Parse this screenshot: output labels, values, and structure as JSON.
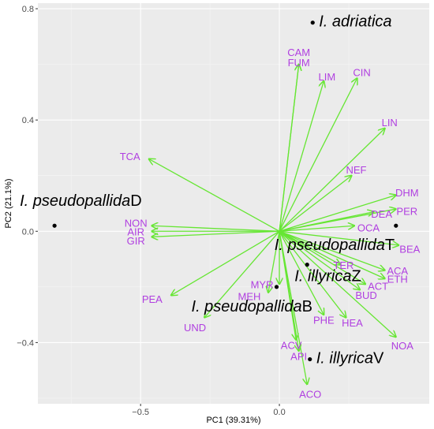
{
  "chart_data": {
    "type": "scatter",
    "subtype": "PCA biplot",
    "title": "",
    "xlabel": "PC1 (39.31%)",
    "ylabel": "PC2 (21.1%)",
    "xlim": [
      -0.87,
      0.54
    ],
    "ylim": [
      -0.62,
      0.82
    ],
    "x_ticks": [
      {
        "value": -0.5,
        "label": "−0.5"
      },
      {
        "value": 0.0,
        "label": "0.0"
      }
    ],
    "y_ticks": [
      {
        "value": 0.8,
        "label": "0.8"
      },
      {
        "value": 0.4,
        "label": "0.4"
      },
      {
        "value": 0.0,
        "label": "0.0"
      },
      {
        "value": -0.4,
        "label": "−0.4"
      }
    ],
    "grid": true,
    "colors": {
      "panel": "#ebebeb",
      "grid_major": "#ffffff",
      "arrow": "#66e633",
      "variable_label": "#b03fe0",
      "point": "#000000"
    },
    "groups": [
      {
        "name": "I. adriatica",
        "suffix": "",
        "x": 0.12,
        "y": 0.75
      },
      {
        "name": "I. pseudopallida",
        "suffix": "D",
        "x": -0.81,
        "y": 0.02
      },
      {
        "name": "I. pseudopallida",
        "suffix": "T",
        "x": 0.42,
        "y": 0.02
      },
      {
        "name": "I. illyrica",
        "suffix": "Z",
        "x": 0.1,
        "y": -0.12
      },
      {
        "name": "I. pseudopallida",
        "suffix": "B",
        "x": -0.01,
        "y": -0.2
      },
      {
        "name": "I. illyrica",
        "suffix": "V",
        "x": 0.11,
        "y": -0.46
      }
    ],
    "loadings": [
      {
        "name": "CAM",
        "x": 0.07,
        "y": 0.6
      },
      {
        "name": "FUM",
        "x": 0.07,
        "y": 0.6
      },
      {
        "name": "LIM",
        "x": 0.16,
        "y": 0.54
      },
      {
        "name": "CIN",
        "x": 0.28,
        "y": 0.55
      },
      {
        "name": "LIN",
        "x": 0.38,
        "y": 0.37
      },
      {
        "name": "NEF",
        "x": 0.26,
        "y": 0.2
      },
      {
        "name": "DHM",
        "x": 0.42,
        "y": 0.13
      },
      {
        "name": "PER",
        "x": 0.42,
        "y": 0.08
      },
      {
        "name": "DEA",
        "x": 0.34,
        "y": 0.07
      },
      {
        "name": "OCA",
        "x": 0.27,
        "y": 0.02
      },
      {
        "name": "BEA",
        "x": 0.43,
        "y": -0.05
      },
      {
        "name": "TER",
        "x": 0.22,
        "y": -0.12
      },
      {
        "name": "ACA",
        "x": 0.38,
        "y": -0.14
      },
      {
        "name": "ETH",
        "x": 0.38,
        "y": -0.17
      },
      {
        "name": "ACT",
        "x": 0.31,
        "y": -0.19
      },
      {
        "name": "BUD",
        "x": 0.29,
        "y": -0.21
      },
      {
        "name": "PHE",
        "x": 0.16,
        "y": -0.3
      },
      {
        "name": "HEA",
        "x": 0.24,
        "y": -0.31
      },
      {
        "name": "NOA",
        "x": 0.42,
        "y": -0.38
      },
      {
        "name": "ACV",
        "x": 0.06,
        "y": -0.39
      },
      {
        "name": "API",
        "x": 0.07,
        "y": -0.43
      },
      {
        "name": "ACO",
        "x": 0.1,
        "y": -0.55
      },
      {
        "name": "TCA",
        "x": -0.47,
        "y": 0.26
      },
      {
        "name": "NON",
        "x": -0.46,
        "y": 0.02
      },
      {
        "name": "AIR",
        "x": -0.46,
        "y": 0.0
      },
      {
        "name": "GIR",
        "x": -0.46,
        "y": -0.02
      },
      {
        "name": "MYR",
        "x": 0.0,
        "y": -0.19
      },
      {
        "name": "MEH",
        "x": -0.04,
        "y": -0.22
      },
      {
        "name": "PEA",
        "x": -0.39,
        "y": -0.23
      },
      {
        "name": "UND",
        "x": -0.27,
        "y": -0.31
      }
    ]
  }
}
